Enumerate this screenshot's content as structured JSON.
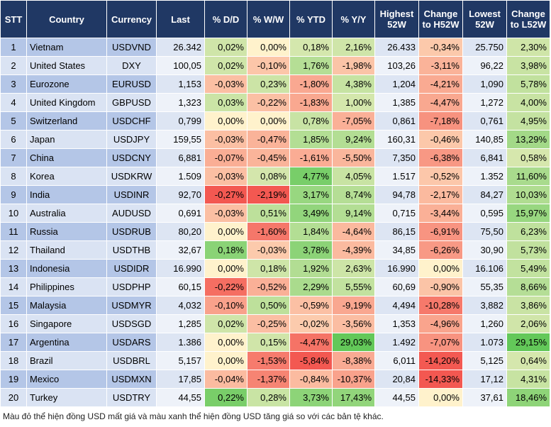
{
  "table": {
    "header": [
      "STT",
      "Country",
      "Currency",
      "Last",
      "% D/D",
      "% W/W",
      "% YTD",
      "% Y/Y",
      "Highest 52W",
      "Change to H52W",
      "Lowest 52W",
      "Change to L52W"
    ],
    "rows": [
      [
        "1",
        "Vietnam",
        "USDVND",
        "26.342",
        "0,02%",
        "0,00%",
        "0,18%",
        "2,16%",
        "26.433",
        "-0,34%",
        "25.750",
        "2,30%"
      ],
      [
        "2",
        "United States",
        "DXY",
        "100,05",
        "0,02%",
        "-0,10%",
        "1,76%",
        "-1,98%",
        "103,26",
        "-3,11%",
        "96,22",
        "3,98%"
      ],
      [
        "3",
        "Eurozone",
        "EURUSD",
        "1,153",
        "-0,03%",
        "0,23%",
        "-1,80%",
        "4,38%",
        "1,204",
        "-4,21%",
        "1,090",
        "5,78%"
      ],
      [
        "4",
        "United Kingdom",
        "GBPUSD",
        "1,323",
        "0,03%",
        "-0,22%",
        "-1,83%",
        "1,00%",
        "1,385",
        "-4,47%",
        "1,272",
        "4,00%"
      ],
      [
        "5",
        "Switzerland",
        "USDCHF",
        "0,799",
        "0,00%",
        "0,00%",
        "0,78%",
        "-7,05%",
        "0,861",
        "-7,18%",
        "0,761",
        "4,95%"
      ],
      [
        "6",
        "Japan",
        "USDJPY",
        "159,55",
        "-0,03%",
        "-0,47%",
        "1,85%",
        "9,24%",
        "160,31",
        "-0,46%",
        "140,85",
        "13,29%"
      ],
      [
        "7",
        "China",
        "USDCNY",
        "6,881",
        "-0,07%",
        "-0,45%",
        "-1,61%",
        "-5,50%",
        "7,350",
        "-6,38%",
        "6,841",
        "0,58%"
      ],
      [
        "8",
        "Korea",
        "USDKRW",
        "1.509",
        "-0,03%",
        "0,08%",
        "4,77%",
        "4,05%",
        "1.517",
        "-0,52%",
        "1.352",
        "11,60%"
      ],
      [
        "9",
        "India",
        "USDINR",
        "92,70",
        "-0,27%",
        "-2,19%",
        "3,17%",
        "8,74%",
        "94,78",
        "-2,17%",
        "84,27",
        "10,03%"
      ],
      [
        "10",
        "Australia",
        "AUDUSD",
        "0,691",
        "-0,03%",
        "0,51%",
        "3,49%",
        "9,14%",
        "0,715",
        "-3,44%",
        "0,595",
        "15,97%"
      ],
      [
        "11",
        "Russia",
        "USDRUB",
        "80,20",
        "0,00%",
        "-1,60%",
        "1,84%",
        "-4,64%",
        "86,15",
        "-6,91%",
        "75,50",
        "6,23%"
      ],
      [
        "12",
        "Thailand",
        "USDTHB",
        "32,67",
        "0,18%",
        "-0,03%",
        "3,78%",
        "-4,39%",
        "34,85",
        "-6,26%",
        "30,90",
        "5,73%"
      ],
      [
        "13",
        "Indonesia",
        "USDIDR",
        "16.990",
        "0,00%",
        "0,18%",
        "1,92%",
        "2,63%",
        "16.990",
        "0,00%",
        "16.106",
        "5,49%"
      ],
      [
        "14",
        "Philippines",
        "USDPHP",
        "60,15",
        "-0,22%",
        "-0,52%",
        "2,29%",
        "5,55%",
        "60,69",
        "-0,90%",
        "55,35",
        "8,66%"
      ],
      [
        "15",
        "Malaysia",
        "USDMYR",
        "4,032",
        "-0,10%",
        "0,50%",
        "-0,59%",
        "-9,19%",
        "4,494",
        "-10,28%",
        "3,882",
        "3,86%"
      ],
      [
        "16",
        "Singapore",
        "USDSGD",
        "1,285",
        "0,02%",
        "-0,25%",
        "-0,02%",
        "-3,56%",
        "1,353",
        "-4,96%",
        "1,260",
        "2,06%"
      ],
      [
        "17",
        "Argentina",
        "USDARS",
        "1.386",
        "0,00%",
        "0,15%",
        "-4,47%",
        "29,03%",
        "1.492",
        "-7,07%",
        "1.073",
        "29,15%"
      ],
      [
        "18",
        "Brazil",
        "USDBRL",
        "5,157",
        "0,00%",
        "-1,53%",
        "-5,84%",
        "-8,38%",
        "6,011",
        "-14,20%",
        "5,125",
        "0,64%"
      ],
      [
        "19",
        "Mexico",
        "USDMXN",
        "17,85",
        "-0,04%",
        "-1,37%",
        "-0,84%",
        "-10,37%",
        "20,84",
        "-14,33%",
        "17,12",
        "4,31%"
      ],
      [
        "20",
        "Turkey",
        "USDTRY",
        "44,55",
        "0,22%",
        "0,28%",
        "3,73%",
        "17,43%",
        "44,55",
        "0,00%",
        "37,61",
        "18,46%"
      ]
    ],
    "note": "Màu đỏ thể hiện đồng USD mất giá và màu xanh thể hiện đồng USD tăng giá so với các bản tệ khác."
  }
}
